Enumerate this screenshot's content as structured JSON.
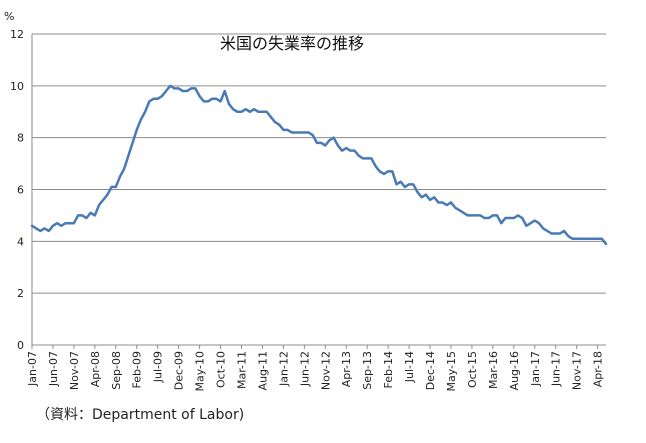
{
  "source_note": "（資料：Department of Labor)",
  "chart_data": {
    "type": "line",
    "title": "米国の失業率の推移",
    "ylabel": "%",
    "xlabel": "",
    "ylim": [
      0,
      12
    ],
    "yticks": [
      "0",
      "2",
      "4",
      "6",
      "8",
      "10",
      "12"
    ],
    "grid": true,
    "line_color": "#4a7ab5",
    "x_tick_labels": [
      "Jan-07",
      "Jun-07",
      "Nov-07",
      "Apr-08",
      "Sep-08",
      "Feb-09",
      "Jul-09",
      "Dec-09",
      "May-10",
      "Oct-10",
      "Mar-11",
      "Aug-11",
      "Jan-12",
      "Jun-12",
      "Nov-12",
      "Apr-13",
      "Sep-13",
      "Feb-14",
      "Jul-14",
      "Dec-14",
      "May-15",
      "Oct-15",
      "Mar-16",
      "Aug-16",
      "Jan-17",
      "Jun-17",
      "Nov-17",
      "Apr-18"
    ],
    "x_start": "Jan-07",
    "x_end": "Apr-18",
    "series": [
      {
        "values": [
          4.6,
          4.5,
          4.4,
          4.5,
          4.4,
          4.6,
          4.7,
          4.6,
          4.7,
          4.7,
          4.7,
          5.0,
          5.0,
          4.9,
          5.1,
          5.0,
          5.4,
          5.6,
          5.8,
          6.1,
          6.1,
          6.5,
          6.8,
          7.3,
          7.8,
          8.3,
          8.7,
          9.0,
          9.4,
          9.5,
          9.5,
          9.6,
          9.8,
          10.0,
          9.9,
          9.9,
          9.8,
          9.8,
          9.9,
          9.9,
          9.6,
          9.4,
          9.4,
          9.5,
          9.5,
          9.4,
          9.8,
          9.3,
          9.1,
          9.0,
          9.0,
          9.1,
          9.0,
          9.1,
          9.0,
          9.0,
          9.0,
          8.8,
          8.6,
          8.5,
          8.3,
          8.3,
          8.2,
          8.2,
          8.2,
          8.2,
          8.2,
          8.1,
          7.8,
          7.8,
          7.7,
          7.9,
          8.0,
          7.7,
          7.5,
          7.6,
          7.5,
          7.5,
          7.3,
          7.2,
          7.2,
          7.2,
          6.9,
          6.7,
          6.6,
          6.7,
          6.7,
          6.2,
          6.3,
          6.1,
          6.2,
          6.2,
          5.9,
          5.7,
          5.8,
          5.6,
          5.7,
          5.5,
          5.5,
          5.4,
          5.5,
          5.3,
          5.2,
          5.1,
          5.0,
          5.0,
          5.0,
          5.0,
          4.9,
          4.9,
          5.0,
          5.0,
          4.7,
          4.9,
          4.9,
          4.9,
          5.0,
          4.9,
          4.6,
          4.7,
          4.8,
          4.7,
          4.5,
          4.4,
          4.3,
          4.3,
          4.3,
          4.4,
          4.2,
          4.1,
          4.1,
          4.1,
          4.1,
          4.1,
          4.1,
          4.1,
          4.1,
          3.9
        ]
      }
    ]
  }
}
